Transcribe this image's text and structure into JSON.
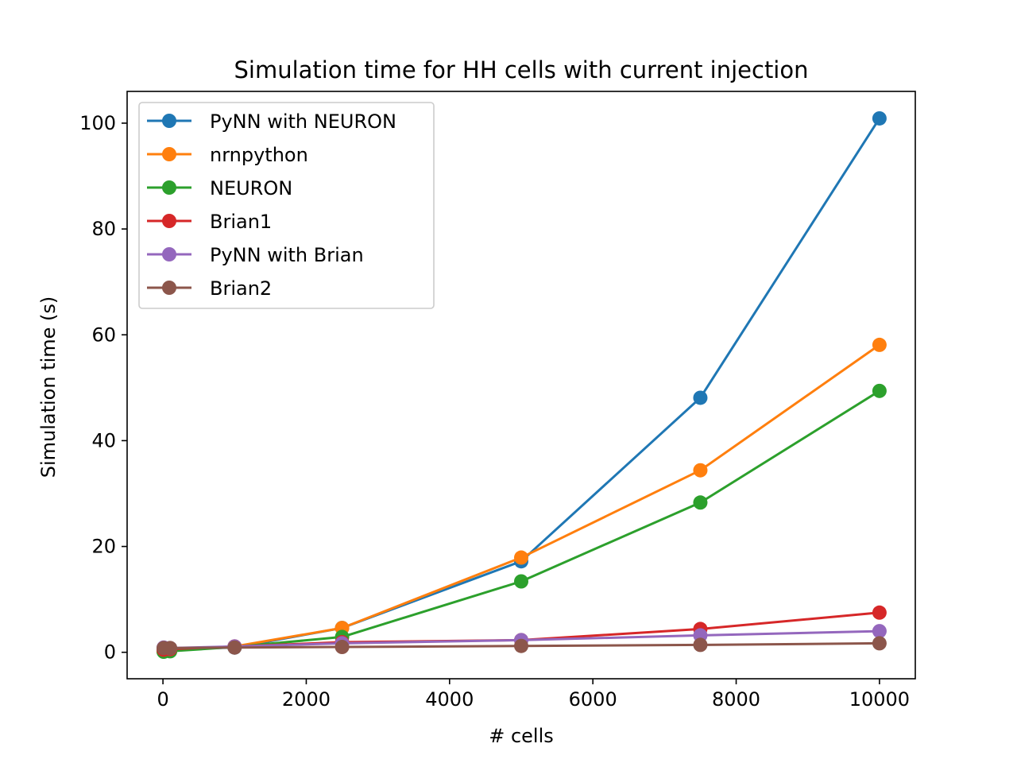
{
  "chart_data": {
    "type": "line",
    "title": "Simulation time for HH cells with current injection",
    "xlabel": "# cells",
    "ylabel": "Simulation time (s)",
    "xlim": [
      -500,
      10500
    ],
    "ylim": [
      -5,
      106
    ],
    "xticks": [
      0,
      2000,
      4000,
      6000,
      8000,
      10000
    ],
    "yticks": [
      0,
      20,
      40,
      60,
      80,
      100
    ],
    "grid": false,
    "legend_position": "top-left",
    "x": [
      10,
      100,
      1000,
      2500,
      5000,
      7500,
      10000
    ],
    "series": [
      {
        "name": "PyNN with NEURON",
        "color": "#1f77b4",
        "values": [
          0.5,
          0.6,
          0.9,
          4.6,
          17.2,
          48.1,
          100.9
        ]
      },
      {
        "name": "nrnpython",
        "color": "#ff7f0e",
        "values": [
          0.2,
          0.3,
          1.1,
          4.6,
          17.9,
          34.4,
          58.1
        ]
      },
      {
        "name": "NEURON",
        "color": "#2ca02c",
        "values": [
          0.1,
          0.2,
          1.0,
          2.9,
          13.4,
          28.3,
          49.4
        ]
      },
      {
        "name": "Brian1",
        "color": "#d62728",
        "values": [
          0.5,
          0.6,
          1.1,
          1.9,
          2.3,
          4.4,
          7.5
        ]
      },
      {
        "name": "PyNN with Brian",
        "color": "#9467bd",
        "values": [
          0.9,
          0.8,
          1.1,
          1.7,
          2.3,
          3.2,
          4.0
        ]
      },
      {
        "name": "Brian2",
        "color": "#8c564b",
        "values": [
          0.8,
          0.8,
          0.9,
          1.0,
          1.2,
          1.4,
          1.7
        ]
      }
    ]
  }
}
